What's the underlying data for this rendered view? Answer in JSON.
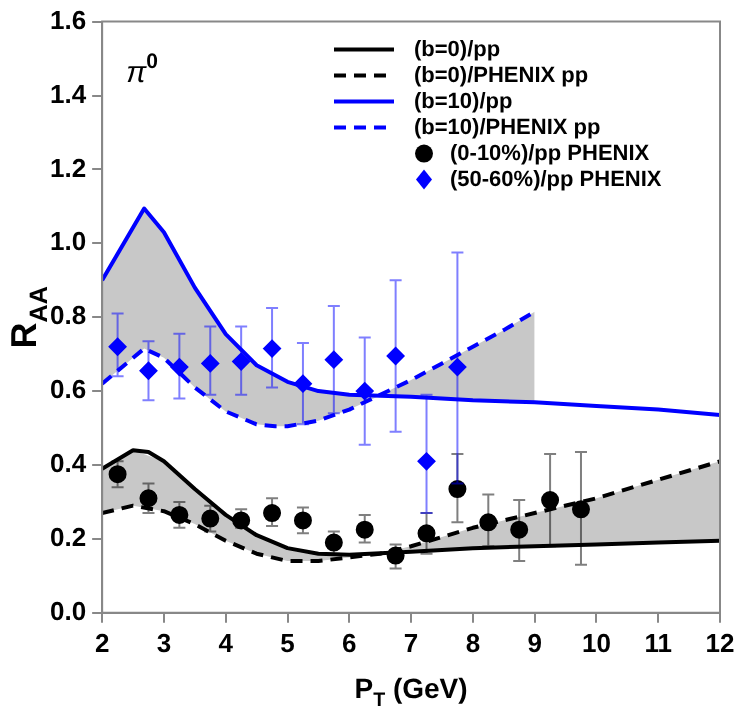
{
  "chart_data": {
    "type": "line",
    "xlabel": "P$_{T}$ (GeV)",
    "ylabel": "R$_{AA}$",
    "annotations": [
      "π$^{0}$"
    ],
    "xlim": [
      2,
      12
    ],
    "xticks": [
      2,
      3,
      4,
      5,
      6,
      7,
      8,
      9,
      10,
      11,
      12
    ],
    "ylim": [
      0,
      1.6
    ],
    "yticks": [
      {
        "value": 0,
        "label": "0.0"
      },
      0.2,
      0.4,
      0.6,
      0.8,
      {
        "value": 1,
        "label": "1.0"
      },
      1.2,
      1.4,
      1.6
    ],
    "grid": false,
    "legend": "top right",
    "series": [
      {
        "name": "(b=0)/pp",
        "color": "#000000",
        "line_style": "solid",
        "marker": "none",
        "x": [
          2,
          2.5,
          2.75,
          3,
          3.5,
          4,
          4.5,
          5,
          5.5,
          6,
          7,
          8,
          9,
          10,
          11,
          12
        ],
        "values": [
          0.39,
          0.44,
          0.435,
          0.41,
          0.335,
          0.265,
          0.21,
          0.175,
          0.16,
          0.157,
          0.165,
          0.175,
          0.18,
          0.185,
          0.19,
          0.195
        ]
      },
      {
        "name": "(b=0)/PHENIX pp",
        "color": "#000000",
        "line_style": "dashed",
        "marker": "none",
        "x": [
          2,
          2.5,
          3,
          3.5,
          4,
          4.5,
          5,
          5.5,
          6,
          6.5,
          7,
          8,
          9,
          10,
          11,
          12
        ],
        "values": [
          0.27,
          0.29,
          0.275,
          0.24,
          0.195,
          0.16,
          0.14,
          0.14,
          0.15,
          0.16,
          0.18,
          0.23,
          0.27,
          0.31,
          0.36,
          0.41
        ],
        "lower": [
          0.27,
          0.29,
          0.275,
          0.24,
          0.195,
          0.16,
          0.14,
          0.14,
          0.15,
          0.16,
          0.165,
          0.175,
          0.18,
          0.185,
          0.19,
          0.195
        ],
        "upper": [
          0.39,
          0.44,
          0.41,
          0.335,
          0.265,
          0.21,
          0.175,
          0.16,
          0.157,
          0.161,
          0.18,
          0.23,
          0.27,
          0.31,
          0.36,
          0.41
        ]
      },
      {
        "name": "(b=10)/pp",
        "color": "#0000ff",
        "line_style": "solid",
        "marker": "none",
        "x": [
          2,
          2.68,
          3,
          3.5,
          4,
          4.5,
          5,
          5.5,
          6,
          7,
          8,
          9,
          10,
          11,
          12
        ],
        "values": [
          0.9,
          1.094,
          1.03,
          0.88,
          0.754,
          0.67,
          0.625,
          0.6,
          0.59,
          0.585,
          0.575,
          0.57,
          0.56,
          0.55,
          0.535
        ]
      },
      {
        "name": "(b=10)/PHENIX pp",
        "color": "#0000ff",
        "line_style": "dashed",
        "marker": "none",
        "x": [
          2,
          2.68,
          3,
          3.5,
          4,
          4.5,
          4.8,
          5,
          5.5,
          6,
          6.5,
          7,
          7.5,
          8,
          8.5,
          9
        ],
        "values": [
          0.62,
          0.715,
          0.69,
          0.61,
          0.545,
          0.51,
          0.505,
          0.505,
          0.52,
          0.55,
          0.59,
          0.63,
          0.675,
          0.72,
          0.765,
          0.815
        ],
        "lower": [
          0.62,
          0.715,
          0.69,
          0.61,
          0.545,
          0.51,
          0.505,
          0.505,
          0.52,
          0.55,
          0.588,
          0.585,
          0.58,
          0.575,
          0.572,
          0.57
        ],
        "upper": [
          0.9,
          1.094,
          1.03,
          0.88,
          0.754,
          0.67,
          0.64,
          0.625,
          0.6,
          0.59,
          0.59,
          0.63,
          0.675,
          0.72,
          0.765,
          0.815
        ]
      },
      {
        "name": "(0-10%)/pp PHENIX",
        "type": "scatter",
        "color": "#000000",
        "marker": "circle",
        "x": [
          2.25,
          2.75,
          3.25,
          3.75,
          4.25,
          4.75,
          5.25,
          5.75,
          6.25,
          6.75,
          7.25,
          7.75,
          8.25,
          8.75,
          9.25,
          9.75
        ],
        "values": [
          0.375,
          0.31,
          0.265,
          0.255,
          0.25,
          0.27,
          0.25,
          0.19,
          0.225,
          0.155,
          0.215,
          0.335,
          0.245,
          0.225,
          0.305,
          0.28
        ],
        "errors": [
          [
            0.34,
            0.41
          ],
          [
            0.27,
            0.35
          ],
          [
            0.23,
            0.3
          ],
          [
            0.22,
            0.29
          ],
          [
            0.23,
            0.28
          ],
          [
            0.235,
            0.31
          ],
          [
            0.215,
            0.285
          ],
          [
            0.16,
            0.22
          ],
          [
            0.19,
            0.265
          ],
          [
            0.12,
            0.185
          ],
          [
            0.16,
            0.27
          ],
          [
            0.245,
            0.43
          ],
          [
            0.18,
            0.32
          ],
          [
            0.14,
            0.305
          ],
          [
            0.18,
            0.43
          ],
          [
            0.13,
            0.435
          ]
        ]
      },
      {
        "name": "(50-60%)/pp PHENIX",
        "type": "scatter",
        "color": "#0000ff",
        "marker": "diamond",
        "x": [
          2.25,
          2.75,
          3.25,
          3.75,
          4.25,
          4.75,
          5.25,
          5.75,
          6.25,
          6.75,
          7.25,
          7.75
        ],
        "values": [
          0.72,
          0.655,
          0.665,
          0.675,
          0.68,
          0.715,
          0.62,
          0.685,
          0.6,
          0.695,
          0.41,
          0.665
        ],
        "errors": [
          [
            0.64,
            0.81
          ],
          [
            0.575,
            0.735
          ],
          [
            0.58,
            0.755
          ],
          [
            0.59,
            0.775
          ],
          [
            0.59,
            0.775
          ],
          [
            0.61,
            0.825
          ],
          [
            0.51,
            0.73
          ],
          [
            0.54,
            0.83
          ],
          [
            0.455,
            0.745
          ],
          [
            0.49,
            0.9
          ],
          [
            0.27,
            0.59
          ],
          [
            0.35,
            0.975
          ]
        ]
      }
    ]
  }
}
